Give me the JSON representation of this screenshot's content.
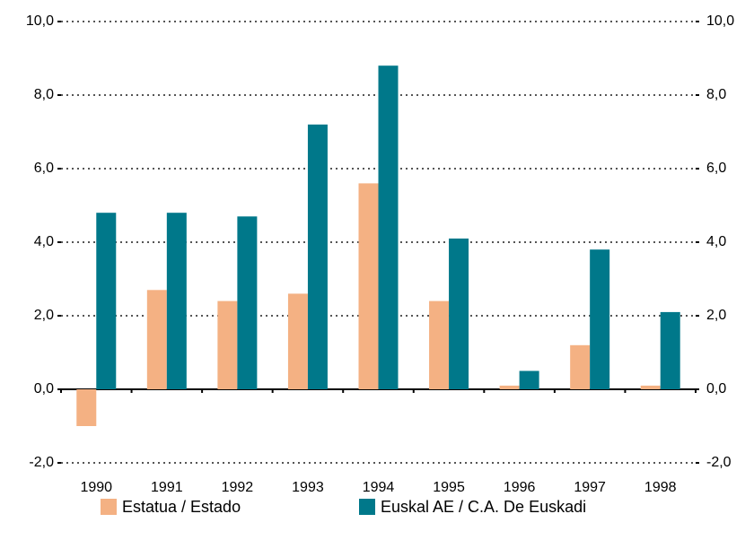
{
  "chart_data": {
    "type": "bar",
    "categories": [
      "1990",
      "1991",
      "1992",
      "1993",
      "1994",
      "1995",
      "1996",
      "1997",
      "1998"
    ],
    "series": [
      {
        "name": "Estatua / Estado",
        "color": "#f4b183",
        "values": [
          -1.0,
          2.7,
          2.4,
          2.6,
          5.6,
          2.4,
          0.1,
          1.2,
          0.1
        ]
      },
      {
        "name": "Euskal AE / C.A. De Euskadi",
        "color": "#00788a",
        "values": [
          4.8,
          4.8,
          4.7,
          7.2,
          8.8,
          4.1,
          0.5,
          3.8,
          2.1
        ]
      }
    ],
    "ylim": [
      -2,
      10
    ],
    "yticks": [
      {
        "value": -2,
        "label": "-2,0"
      },
      {
        "value": 0,
        "label": "0,0"
      },
      {
        "value": 2,
        "label": "2,0"
      },
      {
        "value": 4,
        "label": "4,0"
      },
      {
        "value": 6,
        "label": "6,0"
      },
      {
        "value": 8,
        "label": "8,0"
      },
      {
        "value": 10,
        "label": "10,0"
      }
    ],
    "y2lim": [
      -2,
      10
    ],
    "y2ticks": [
      {
        "value": -2,
        "label": "-2,0"
      },
      {
        "value": 0,
        "label": "0,0"
      },
      {
        "value": 2,
        "label": "2,0"
      },
      {
        "value": 4,
        "label": "4,0"
      },
      {
        "value": 6,
        "label": "6,0"
      },
      {
        "value": 8,
        "label": "8,0"
      },
      {
        "value": 10,
        "label": "10,0"
      }
    ],
    "grid": true,
    "legend": "bottom"
  }
}
